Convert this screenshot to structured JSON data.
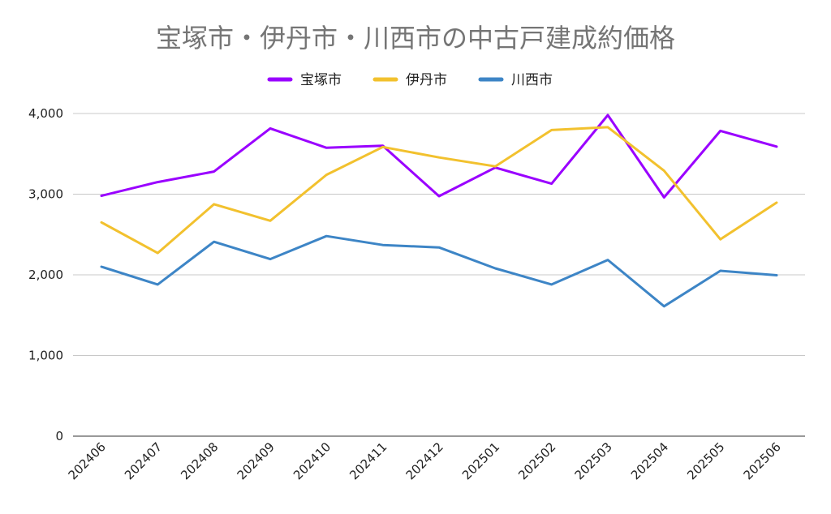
{
  "chart_data": {
    "type": "line",
    "title": "宝塚市・伊丹市・川西市の中古戸建成約価格",
    "xlabel": "",
    "ylabel": "",
    "ylim": [
      0,
      4000
    ],
    "yticks": [
      0,
      1000,
      2000,
      3000,
      4000
    ],
    "ytick_labels": [
      "0",
      "1,000",
      "2,000",
      "3,000",
      "4,000"
    ],
    "grid": true,
    "legend_position": "top-center",
    "categories": [
      "202406",
      "202407",
      "202408",
      "202409",
      "202410",
      "202411",
      "202412",
      "202501",
      "202502",
      "202503",
      "202504",
      "202505",
      "202506"
    ],
    "series": [
      {
        "name": "宝塚市",
        "color": "#9a00ff",
        "values": [
          2980,
          3150,
          3280,
          3815,
          3575,
          3600,
          2975,
          3330,
          3130,
          3980,
          2960,
          3785,
          3590
        ]
      },
      {
        "name": "伊丹市",
        "color": "#f2c12e",
        "values": [
          2650,
          2270,
          2875,
          2670,
          3240,
          3585,
          3455,
          3345,
          3795,
          3830,
          3290,
          2440,
          2895
        ]
      },
      {
        "name": "川西市",
        "color": "#3d85c6",
        "values": [
          2100,
          1880,
          2410,
          2195,
          2480,
          2370,
          2340,
          2080,
          1880,
          2185,
          1610,
          2050,
          1995
        ]
      }
    ]
  }
}
